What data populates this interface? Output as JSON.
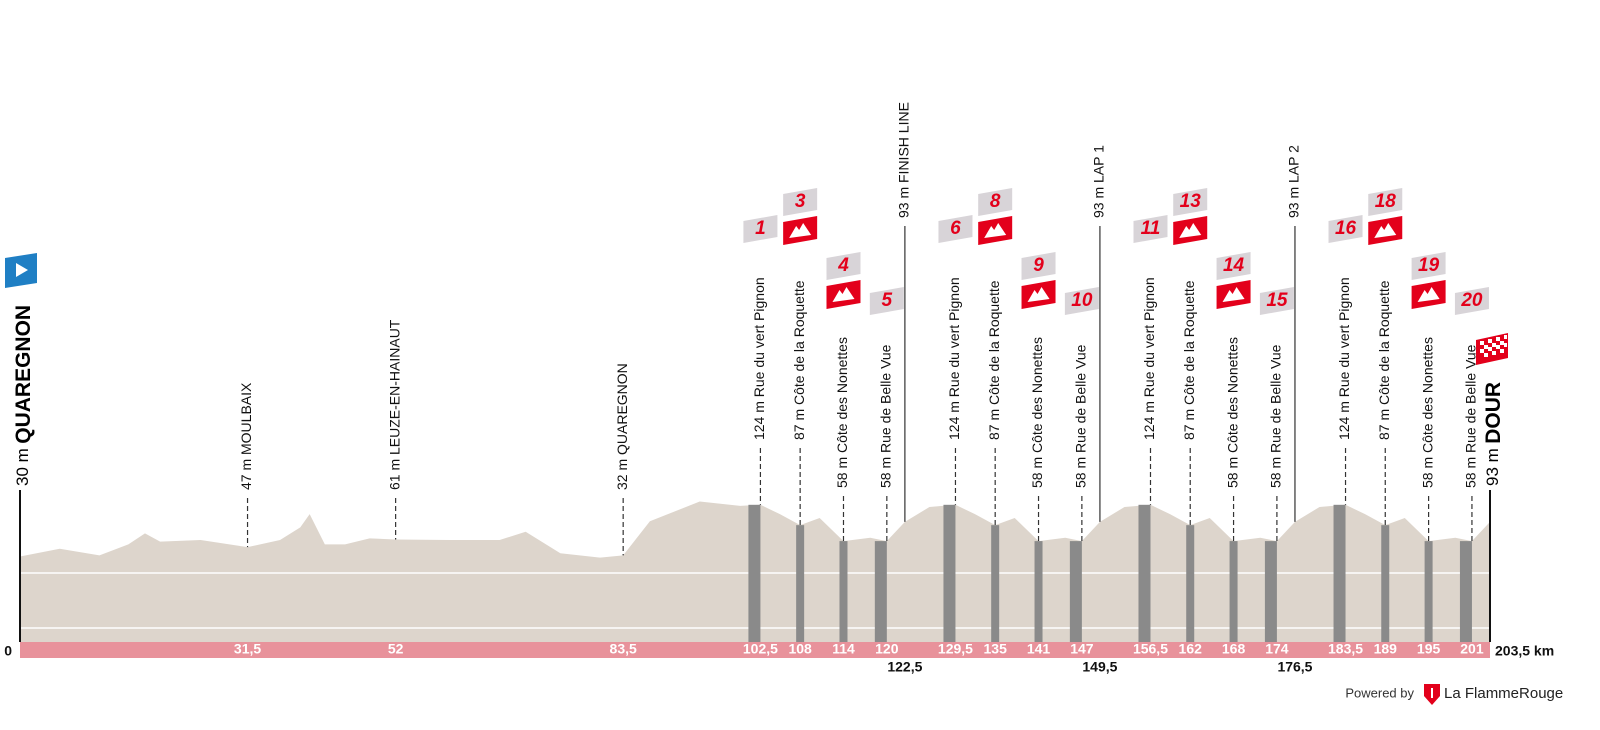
{
  "chart_data": {
    "type": "profile",
    "xlim": [
      0,
      203.5
    ],
    "xticks": [
      0,
      {
        "value": 203.5,
        "label": "203,5 km"
      }
    ],
    "ylim": [
      -125,
      150
    ],
    "yticks": [
      -100,
      0
    ],
    "grid": true,
    "color": "#ddd5cc",
    "start": {
      "altitude": "30 m",
      "name": "QUAREGNON"
    },
    "finish": {
      "altitude": "93 m",
      "name": "DOUR"
    },
    "x": [
      0,
      5.5,
      11,
      15,
      17.3,
      19.4,
      25,
      31.5,
      36,
      38.8,
      40.1,
      42.2,
      45,
      48.4,
      52,
      59.5,
      66.4,
      70,
      74.8,
      80.3,
      83.5,
      87.2,
      94.1,
      99.7,
      102.5,
      105.2,
      108,
      110.7,
      114,
      117.7,
      120,
      122.5,
      125.9,
      129.5,
      132.2,
      135,
      137.7,
      141,
      144.7,
      147,
      149.5,
      152.9,
      156.5,
      159.2,
      162,
      164.7,
      168,
      171.7,
      174,
      176.5,
      179.9,
      183.5,
      186.2,
      189,
      191.7,
      195,
      198.7,
      201,
      203.5
    ],
    "elevation": [
      30,
      44,
      32,
      52,
      72,
      57,
      60,
      47,
      60,
      83,
      107,
      52,
      52,
      63,
      61,
      60,
      60,
      75,
      36,
      28,
      32,
      94,
      130,
      122,
      124,
      107,
      87,
      100,
      58,
      64,
      58,
      93,
      120,
      124,
      107,
      87,
      100,
      58,
      64,
      58,
      93,
      120,
      124,
      107,
      87,
      100,
      58,
      64,
      58,
      93,
      120,
      124,
      107,
      87,
      100,
      58,
      64,
      58,
      93
    ],
    "markers": [
      {
        "name": "47 m MOULBAIX",
        "km": {
          "value": 31.5,
          "label": "31,5"
        },
        "kind": "place"
      },
      {
        "name": "61 m LEUZE-EN-HAINAUT",
        "km": 52,
        "kind": "place"
      },
      {
        "name": "32 m QUAREGNON",
        "km": {
          "value": 83.5,
          "label": "83,5"
        },
        "kind": "place"
      },
      {
        "name": "124 m Rue du vert Pignon",
        "km": {
          "value": 102.5,
          "label": "102,5"
        },
        "kind": "sector",
        "number": "1"
      },
      {
        "name": "87 m Côte de la Roquette",
        "km": 108,
        "kind": "climb",
        "number": "3"
      },
      {
        "name": "58 m Côte des Nonettes",
        "km": 114,
        "kind": "climb",
        "number": "4"
      },
      {
        "name": "58 m Rue de Belle Vue",
        "km": 120,
        "kind": "sector",
        "number": "5"
      },
      {
        "name": "93 m FINISH LINE",
        "km": {
          "value": 122.5,
          "label": "122,5"
        },
        "kind": "line"
      },
      {
        "name": "124 m Rue du vert Pignon",
        "km": {
          "value": 129.5,
          "label": "129,5"
        },
        "kind": "sector",
        "number": "6"
      },
      {
        "name": "87 m Côte de la Roquette",
        "km": 135,
        "kind": "climb",
        "number": "8"
      },
      {
        "name": "58 m Côte des Nonettes",
        "km": 141,
        "kind": "climb",
        "number": "9"
      },
      {
        "name": "58 m Rue de Belle Vue",
        "km": 147,
        "kind": "sector",
        "number": "10"
      },
      {
        "name": "93 m LAP 1",
        "km": {
          "value": 149.5,
          "label": "149,5"
        },
        "kind": "line"
      },
      {
        "name": "124 m Rue du vert Pignon",
        "km": {
          "value": 156.5,
          "label": "156,5"
        },
        "kind": "sector",
        "number": "11"
      },
      {
        "name": "87 m Côte de la Roquette",
        "km": 162,
        "kind": "climb",
        "number": "13"
      },
      {
        "name": "58 m Côte des Nonettes",
        "km": 168,
        "kind": "climb",
        "number": "14"
      },
      {
        "name": "58 m Rue de Belle Vue",
        "km": 174,
        "kind": "sector",
        "number": "15"
      },
      {
        "name": "93 m LAP 2",
        "km": {
          "value": 176.5,
          "label": "176,5"
        },
        "kind": "line"
      },
      {
        "name": "124 m Rue du vert Pignon",
        "km": {
          "value": 183.5,
          "label": "183,5"
        },
        "kind": "sector",
        "number": "16"
      },
      {
        "name": "87 m Côte de la Roquette",
        "km": 189,
        "kind": "climb",
        "number": "18"
      },
      {
        "name": "58 m Côte des Nonettes",
        "km": 195,
        "kind": "climb",
        "number": "19"
      },
      {
        "name": "58 m Rue de Belle Vue",
        "km": 201,
        "kind": "sector",
        "number": "20"
      }
    ],
    "footer": {
      "powered": "Powered by",
      "brand": "La FlammeRouge"
    }
  }
}
